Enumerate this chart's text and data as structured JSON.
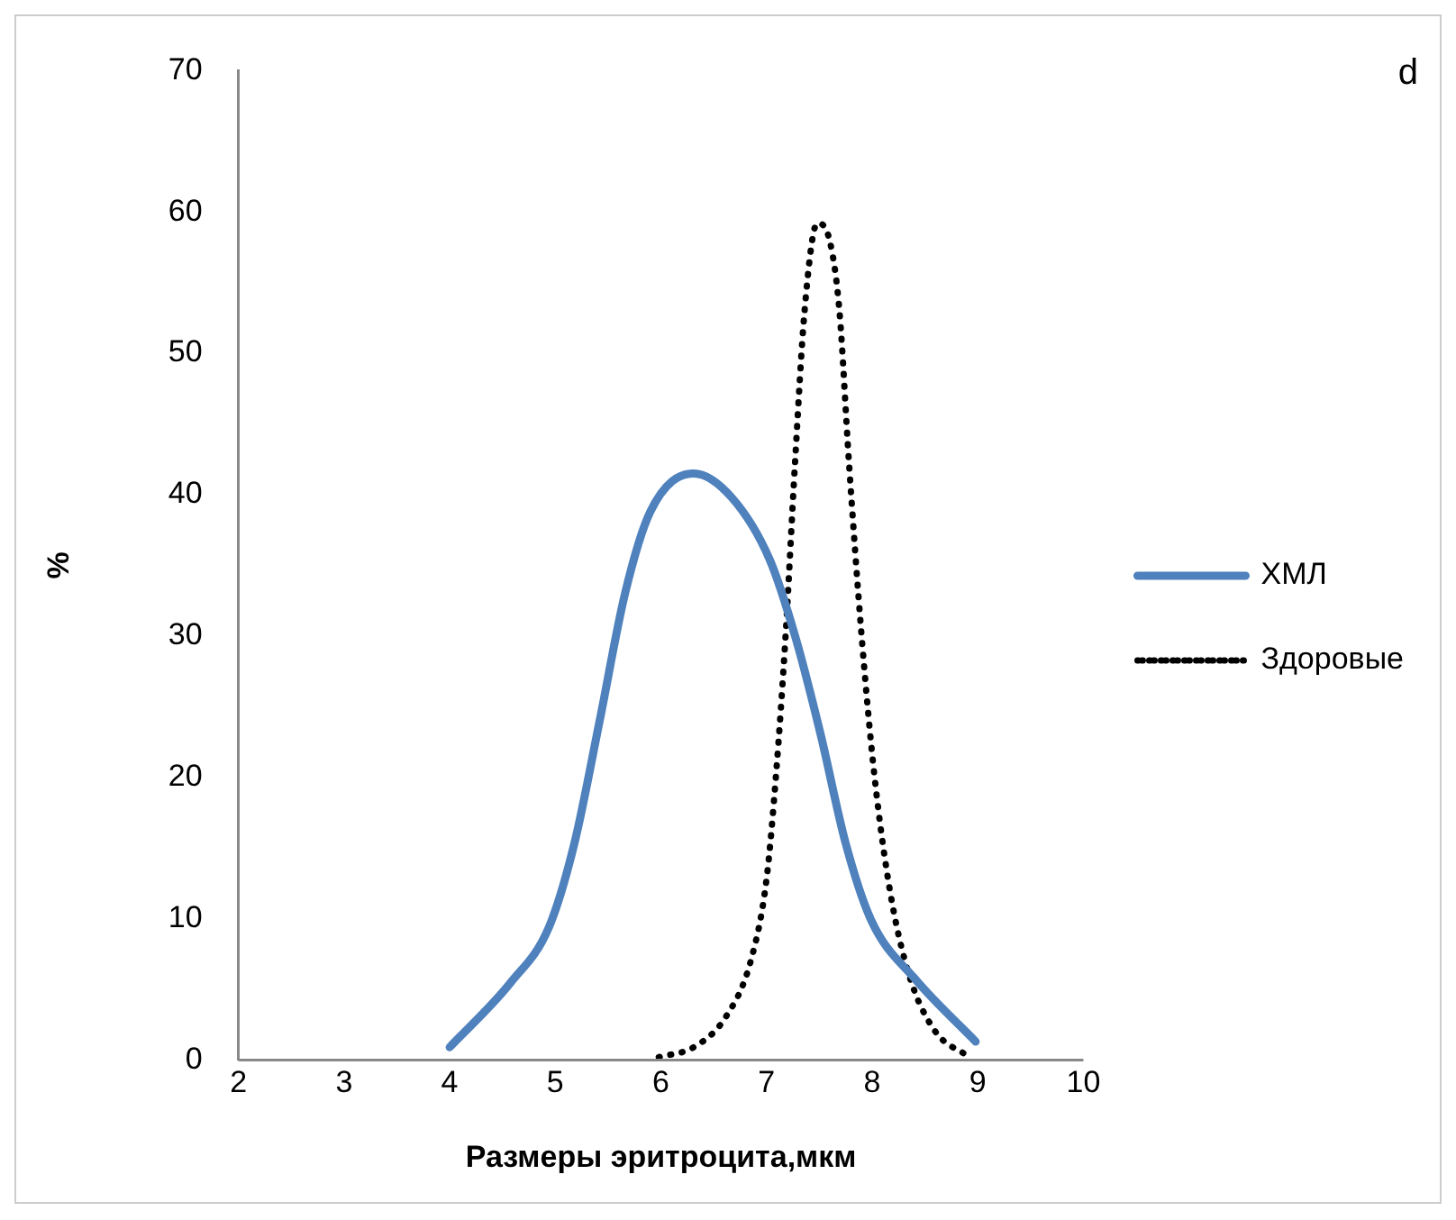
{
  "chart_data": {
    "type": "line",
    "xlabel": "Размеры эритроцита,мкм",
    "ylabel": "%",
    "annotations": [
      "d"
    ],
    "xlim": [
      2,
      10
    ],
    "xticks": [
      2,
      3,
      4,
      5,
      6,
      7,
      8,
      9,
      10
    ],
    "ylim": [
      0,
      70
    ],
    "yticks": [
      0,
      10,
      20,
      30,
      40,
      50,
      60,
      70
    ],
    "grid": false,
    "legend": "right",
    "marker": "none",
    "series": [
      {
        "name": "ХМЛ",
        "color": "#4f81bd",
        "line_style": "solid",
        "x": [
          4.0,
          4.58,
          4.94,
          5.18,
          5.42,
          5.66,
          5.9,
          6.31,
          6.67,
          7.03,
          7.27,
          7.51,
          7.75,
          7.99,
          8.41,
          8.98
        ],
        "values": [
          0.9,
          5.5,
          9.4,
          15.3,
          24,
          33,
          38.8,
          41.5,
          39.8,
          35.4,
          30,
          23.1,
          15.3,
          9.9,
          5.7,
          1.3
        ]
      },
      {
        "name": "Здоровые",
        "color": "#000000",
        "line_style": "dotted",
        "x": [
          5.98,
          6.31,
          6.61,
          6.85,
          7.0,
          7.09,
          7.18,
          7.27,
          7.36,
          7.48,
          7.6,
          7.69,
          7.78,
          7.9,
          8.02,
          8.17,
          8.35,
          8.59,
          8.92
        ],
        "values": [
          0.2,
          0.9,
          3,
          7,
          12.8,
          20.2,
          30,
          42.3,
          53,
          59.2,
          57.9,
          53,
          42.3,
          30,
          20.2,
          11.9,
          6,
          2.1,
          0.2
        ]
      }
    ]
  }
}
